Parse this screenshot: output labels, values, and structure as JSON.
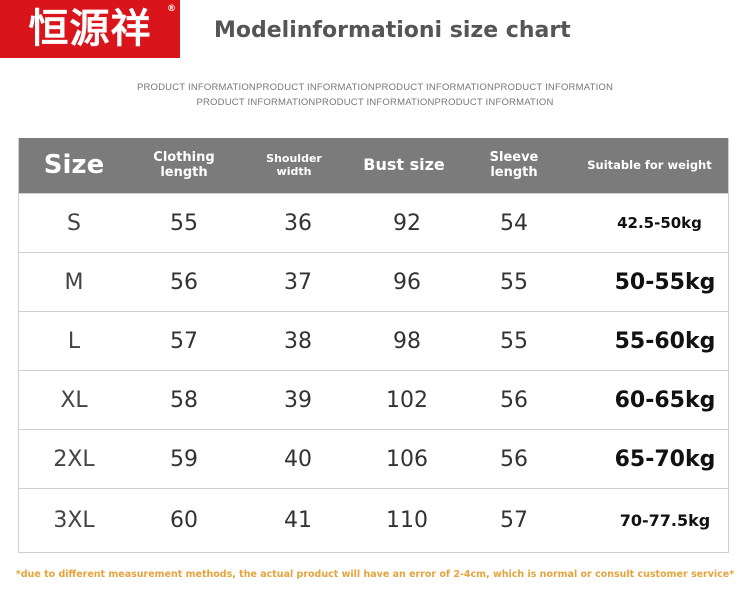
{
  "brand": {
    "logo_text": "恒源祥",
    "registered": "®",
    "logo_color": "#d9141b"
  },
  "title": "Modelinformationi size chart",
  "subtitle_line1": "PRODUCT INFORMATIONPRODUCT INFORMATIONPRODUCT INFORMATIONPRODUCT INFORMATION",
  "subtitle_line2": "PRODUCT INFORMATIONPRODUCT INFORMATIONPRODUCT INFORMATION",
  "table": {
    "header_color": "#7b7b7b",
    "headers": [
      "Size",
      "Clothing length",
      "Shoulder width",
      "Bust size",
      "Sleeve length",
      "Suitable for weight"
    ],
    "rows": [
      {
        "size": "S",
        "clothing_length": "55",
        "shoulder_width": "36",
        "bust_size": "92",
        "sleeve_length": "54",
        "weight": "42.5-50kg"
      },
      {
        "size": "M",
        "clothing_length": "56",
        "shoulder_width": "37",
        "bust_size": "96",
        "sleeve_length": "55",
        "weight": "50-55kg"
      },
      {
        "size": "L",
        "clothing_length": "57",
        "shoulder_width": "38",
        "bust_size": "98",
        "sleeve_length": "55",
        "weight": "55-60kg"
      },
      {
        "size": "XL",
        "clothing_length": "58",
        "shoulder_width": "39",
        "bust_size": "102",
        "sleeve_length": "56",
        "weight": "60-65kg"
      },
      {
        "size": "2XL",
        "clothing_length": "59",
        "shoulder_width": "40",
        "bust_size": "106",
        "sleeve_length": "56",
        "weight": "65-70kg"
      },
      {
        "size": "3XL",
        "clothing_length": "60",
        "shoulder_width": "41",
        "bust_size": "110",
        "sleeve_length": "57",
        "weight": "70-77.5kg"
      }
    ]
  },
  "note": "*due to different measurement methods, the actual product will have an error of 2-4cm, which is normal or consult customer service*",
  "note_color": "#e6a33c"
}
